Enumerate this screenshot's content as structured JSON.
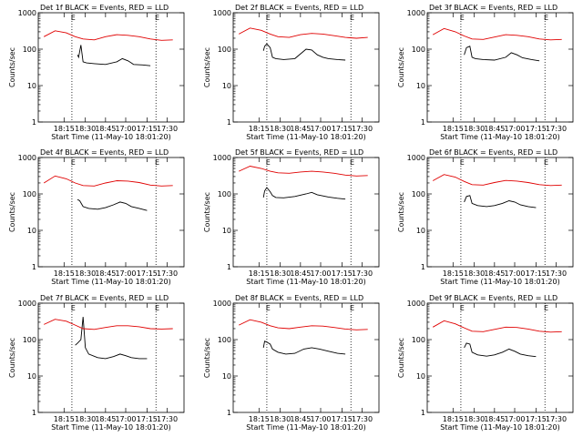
{
  "colors": {
    "events": "#000000",
    "lld": "#e00000"
  },
  "chart_data": [
    {
      "type": "line",
      "title": "Det 1f BLACK = Events, RED = LLD",
      "ylabel": "Counts/sec",
      "xlabel": "Start Time (11-May-10 18:01:20)",
      "yscale": "log",
      "ylim": [
        1,
        1000
      ],
      "x_tick_labels": [
        "18:15",
        "18:30",
        "18:45",
        "17:00",
        "17:15",
        "17:30"
      ],
      "y_tick_labels": [
        "1",
        "10",
        "100",
        "1000"
      ],
      "marker": "E",
      "series": [
        {
          "color": "#000000",
          "x": [
            18.3,
            18.31,
            18.33,
            18.35,
            18.38,
            18.45,
            18.55,
            18.65,
            18.7,
            18.75,
            18.78,
            18.8,
            18.88,
            18.95
          ],
          "values": [
            70,
            60,
            130,
            45,
            42,
            40,
            38,
            45,
            55,
            48,
            42,
            38,
            37,
            35
          ]
        },
        {
          "color": "#e00000",
          "x": [
            18.0,
            18.1,
            18.2,
            18.28,
            18.35,
            18.45,
            18.55,
            18.65,
            18.75,
            18.85,
            18.95,
            19.05,
            19.15
          ],
          "values": [
            220,
            320,
            280,
            220,
            190,
            180,
            220,
            250,
            240,
            220,
            190,
            175,
            180
          ]
        }
      ]
    },
    {
      "type": "line",
      "title": "Det 2f BLACK = Events, RED = LLD",
      "ylabel": "Counts/sec",
      "xlabel": "Start Time (11-May-10 18:01:20)",
      "yscale": "log",
      "ylim": [
        1,
        1000
      ],
      "x_tick_labels": [
        "18:15",
        "18:30",
        "18:45",
        "17:00",
        "17:15",
        "17:30"
      ],
      "y_tick_labels": [
        "1",
        "10",
        "100",
        "1000"
      ],
      "marker": "E",
      "series": [
        {
          "color": "#000000",
          "x": [
            18.22,
            18.23,
            18.25,
            18.28,
            18.3,
            18.33,
            18.4,
            18.5,
            18.6,
            18.65,
            18.7,
            18.75,
            18.8,
            18.88,
            18.95
          ],
          "values": [
            90,
            120,
            140,
            110,
            60,
            55,
            52,
            55,
            100,
            95,
            70,
            60,
            55,
            52,
            50
          ]
        },
        {
          "color": "#e00000",
          "x": [
            18.0,
            18.1,
            18.2,
            18.28,
            18.35,
            18.45,
            18.55,
            18.65,
            18.75,
            18.85,
            18.95,
            19.05,
            19.15
          ],
          "values": [
            260,
            380,
            330,
            260,
            220,
            210,
            250,
            270,
            260,
            235,
            210,
            200,
            210
          ]
        }
      ]
    },
    {
      "type": "line",
      "title": "Det 3f BLACK = Events, RED = LLD",
      "ylabel": "Counts/sec",
      "xlabel": "Start Time (11-May-10 18:01:20)",
      "yscale": "log",
      "ylim": [
        1,
        1000
      ],
      "x_tick_labels": [
        "18:15",
        "18:30",
        "18:45",
        "17:00",
        "17:15",
        "17:30"
      ],
      "y_tick_labels": [
        "1",
        "10",
        "100",
        "1000"
      ],
      "marker": "E",
      "series": [
        {
          "color": "#000000",
          "x": [
            18.28,
            18.3,
            18.33,
            18.35,
            18.38,
            18.45,
            18.55,
            18.65,
            18.7,
            18.75,
            18.8,
            18.88,
            18.95
          ],
          "values": [
            70,
            110,
            120,
            60,
            55,
            52,
            50,
            60,
            80,
            70,
            58,
            52,
            48
          ]
        },
        {
          "color": "#e00000",
          "x": [
            18.0,
            18.1,
            18.2,
            18.28,
            18.35,
            18.45,
            18.55,
            18.65,
            18.75,
            18.85,
            18.95,
            19.05,
            19.15
          ],
          "values": [
            250,
            370,
            300,
            230,
            190,
            185,
            215,
            250,
            240,
            220,
            190,
            180,
            185
          ]
        }
      ]
    },
    {
      "type": "line",
      "title": "Det 4f BLACK = Events, RED = LLD",
      "ylabel": "Counts/sec",
      "xlabel": "Start Time (11-May-10 18:01:20)",
      "yscale": "log",
      "ylim": [
        1,
        1000
      ],
      "x_tick_labels": [
        "18:15",
        "18:30",
        "18:45",
        "17:00",
        "17:15",
        "17:30"
      ],
      "y_tick_labels": [
        "1",
        "10",
        "100",
        "1000"
      ],
      "marker": "E",
      "series": [
        {
          "color": "#000000",
          "x": [
            18.3,
            18.32,
            18.35,
            18.4,
            18.48,
            18.55,
            18.62,
            18.68,
            18.73,
            18.78,
            18.85,
            18.92
          ],
          "values": [
            70,
            65,
            45,
            40,
            38,
            42,
            50,
            60,
            55,
            45,
            40,
            35
          ]
        },
        {
          "color": "#e00000",
          "x": [
            18.0,
            18.1,
            18.2,
            18.28,
            18.35,
            18.45,
            18.55,
            18.65,
            18.75,
            18.85,
            18.95,
            19.05,
            19.15
          ],
          "values": [
            200,
            310,
            260,
            200,
            170,
            165,
            200,
            230,
            225,
            205,
            175,
            165,
            170
          ]
        }
      ]
    },
    {
      "type": "line",
      "title": "Det 5f BLACK = Events, RED = LLD",
      "ylabel": "Counts/sec",
      "xlabel": "Start Time (11-May-10 18:01:20)",
      "yscale": "log",
      "ylim": [
        1,
        1000
      ],
      "x_tick_labels": [
        "18:15",
        "18:30",
        "18:45",
        "17:00",
        "17:15",
        "17:30"
      ],
      "y_tick_labels": [
        "1",
        "10",
        "100",
        "1000"
      ],
      "marker": "E",
      "series": [
        {
          "color": "#000000",
          "x": [
            18.22,
            18.23,
            18.25,
            18.28,
            18.3,
            18.33,
            18.4,
            18.5,
            18.6,
            18.65,
            18.7,
            18.75,
            18.8,
            18.88,
            18.95
          ],
          "values": [
            80,
            120,
            150,
            115,
            90,
            80,
            78,
            85,
            100,
            110,
            95,
            88,
            82,
            76,
            72
          ]
        },
        {
          "color": "#e00000",
          "x": [
            18.0,
            18.1,
            18.2,
            18.28,
            18.35,
            18.45,
            18.55,
            18.65,
            18.75,
            18.85,
            18.95,
            19.05,
            19.15
          ],
          "values": [
            420,
            580,
            500,
            420,
            380,
            370,
            400,
            420,
            400,
            370,
            330,
            310,
            320
          ]
        }
      ]
    },
    {
      "type": "line",
      "title": "Det 6f BLACK = Events, RED = LLD",
      "ylabel": "Counts/sec",
      "xlabel": "Start Time (11-May-10 18:01:20)",
      "yscale": "log",
      "ylim": [
        1,
        1000
      ],
      "x_tick_labels": [
        "18:15",
        "18:30",
        "18:45",
        "17:00",
        "17:15",
        "17:30"
      ],
      "y_tick_labels": [
        "1",
        "10",
        "100",
        "1000"
      ],
      "marker": "E",
      "series": [
        {
          "color": "#000000",
          "x": [
            18.28,
            18.3,
            18.33,
            18.35,
            18.4,
            18.48,
            18.55,
            18.62,
            18.68,
            18.73,
            18.78,
            18.85,
            18.92
          ],
          "values": [
            60,
            85,
            90,
            55,
            48,
            45,
            48,
            55,
            65,
            60,
            50,
            45,
            42
          ]
        },
        {
          "color": "#e00000",
          "x": [
            18.0,
            18.1,
            18.2,
            18.28,
            18.35,
            18.45,
            18.55,
            18.65,
            18.75,
            18.85,
            18.95,
            19.05,
            19.15
          ],
          "values": [
            230,
            340,
            290,
            220,
            180,
            175,
            205,
            235,
            225,
            205,
            180,
            170,
            175
          ]
        }
      ]
    },
    {
      "type": "line",
      "title": "Det 7f BLACK = Events, RED = LLD",
      "ylabel": "Counts/sec",
      "xlabel": "Start Time (11-May-10 18:01:20)",
      "yscale": "log",
      "ylim": [
        1,
        1000
      ],
      "x_tick_labels": [
        "18:15",
        "18:30",
        "18:45",
        "17:00",
        "17:15",
        "17:30"
      ],
      "y_tick_labels": [
        "1",
        "10",
        "100",
        "1000"
      ],
      "marker": "E",
      "series": [
        {
          "color": "#000000",
          "x": [
            18.28,
            18.3,
            18.33,
            18.35,
            18.37,
            18.4,
            18.48,
            18.55,
            18.62,
            18.68,
            18.73,
            18.78,
            18.85,
            18.92
          ],
          "values": [
            70,
            80,
            100,
            420,
            60,
            40,
            32,
            30,
            34,
            40,
            36,
            32,
            30,
            30
          ]
        },
        {
          "color": "#e00000",
          "x": [
            18.0,
            18.1,
            18.2,
            18.28,
            18.35,
            18.45,
            18.55,
            18.65,
            18.75,
            18.85,
            18.95,
            19.05,
            19.15
          ],
          "values": [
            260,
            360,
            320,
            250,
            200,
            190,
            215,
            240,
            240,
            225,
            200,
            195,
            200
          ]
        }
      ]
    },
    {
      "type": "line",
      "title": "Det 8f BLACK = Events, RED = LLD",
      "ylabel": "Counts/sec",
      "xlabel": "Start Time (11-May-10 18:01:20)",
      "yscale": "log",
      "ylim": [
        1,
        1000
      ],
      "x_tick_labels": [
        "18:15",
        "18:30",
        "18:45",
        "17:00",
        "17:15",
        "17:30"
      ],
      "y_tick_labels": [
        "1",
        "10",
        "100",
        "1000"
      ],
      "marker": "E",
      "series": [
        {
          "color": "#000000",
          "x": [
            18.22,
            18.23,
            18.25,
            18.28,
            18.3,
            18.35,
            18.42,
            18.5,
            18.58,
            18.65,
            18.72,
            18.8,
            18.88,
            18.95
          ],
          "values": [
            60,
            90,
            85,
            75,
            55,
            45,
            40,
            42,
            55,
            60,
            55,
            48,
            42,
            40
          ]
        },
        {
          "color": "#e00000",
          "x": [
            18.0,
            18.1,
            18.2,
            18.28,
            18.35,
            18.45,
            18.55,
            18.65,
            18.75,
            18.85,
            18.95,
            19.05,
            19.15
          ],
          "values": [
            250,
            350,
            300,
            240,
            210,
            200,
            220,
            240,
            235,
            215,
            195,
            185,
            190
          ]
        }
      ]
    },
    {
      "type": "line",
      "title": "Det 9f BLACK = Events, RED = LLD",
      "ylabel": "Counts/sec",
      "xlabel": "Start Time (11-May-10 18:01:20)",
      "yscale": "log",
      "ylim": [
        1,
        1000
      ],
      "x_tick_labels": [
        "18:15",
        "18:30",
        "18:45",
        "17:00",
        "17:15",
        "17:30"
      ],
      "y_tick_labels": [
        "1",
        "10",
        "100",
        "1000"
      ],
      "marker": "E",
      "series": [
        {
          "color": "#000000",
          "x": [
            18.28,
            18.3,
            18.33,
            18.35,
            18.4,
            18.48,
            18.55,
            18.62,
            18.68,
            18.73,
            18.78,
            18.85,
            18.92
          ],
          "values": [
            60,
            80,
            75,
            45,
            38,
            35,
            38,
            45,
            55,
            48,
            40,
            36,
            34
          ]
        },
        {
          "color": "#e00000",
          "x": [
            18.0,
            18.1,
            18.2,
            18.28,
            18.35,
            18.45,
            18.55,
            18.65,
            18.75,
            18.85,
            18.95,
            19.05,
            19.15
          ],
          "values": [
            220,
            330,
            270,
            210,
            170,
            165,
            190,
            220,
            215,
            195,
            170,
            160,
            165
          ]
        }
      ]
    }
  ]
}
